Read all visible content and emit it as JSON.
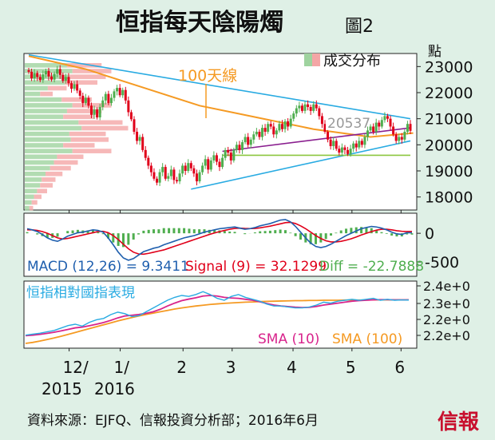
{
  "title": "恒指每天陰陽燭",
  "figure_label": "圖2",
  "unit_label": "點",
  "footer": "資料來源：EJFQ、信報投資分析部；2016年6月",
  "logo_text": "信報",
  "colors": {
    "background": "#dff0e6",
    "panel": "#ffffff",
    "up": "#4fae4f",
    "down": "#e0001a",
    "ma100": "#f59a23",
    "trend": "#29abe2",
    "purple": "#8a1f8f",
    "support": "#8cc63f",
    "macd": "#1f5fae",
    "signal": "#e0001a",
    "diff": "#4fae4f",
    "rel": "#29abe2",
    "sma10": "#d8248c",
    "sma100": "#f59a23",
    "vol_up": "#9fd39f",
    "vol_down": "#f4a6a6"
  },
  "chart_data": [
    {
      "type": "candlestick",
      "name": "price_panel",
      "ylim": [
        17500,
        23500
      ],
      "yticks": [
        23000,
        22000,
        21000,
        20000,
        19000,
        18000
      ],
      "ytick_labels": [
        "23000",
        "22000",
        "21000",
        "20000",
        "19000",
        "18000"
      ],
      "legend": "成交分布",
      "annotations": {
        "ma100_label": "100天線",
        "price_label": "20537"
      },
      "close": [
        22800,
        22550,
        22750,
        22600,
        22480,
        22700,
        22830,
        22620,
        22500,
        22720,
        22900,
        22680,
        22450,
        22600,
        22360,
        22150,
        22320,
        22080,
        21880,
        21600,
        21800,
        21500,
        21150,
        21350,
        21050,
        21450,
        21700,
        21950,
        21600,
        21800,
        22050,
        22180,
        21900,
        22100,
        21700,
        21250,
        20980,
        20500,
        20150,
        20300,
        19800,
        19500,
        19200,
        18950,
        18700,
        18550,
        18950,
        19150,
        18700,
        18800,
        19050,
        18650,
        18600,
        18900,
        19200,
        19000,
        19300,
        19100,
        18900,
        18600,
        18950,
        19200,
        19450,
        19050,
        19400,
        19600,
        19350,
        19150,
        19500,
        19800,
        19700,
        19400,
        19800,
        20000,
        19800,
        20100,
        20300,
        20000,
        20200,
        20400,
        20500,
        20300,
        20650,
        20500,
        20800,
        20700,
        20400,
        20550,
        20800,
        20600,
        20900,
        20700,
        21000,
        21200,
        21400,
        21500,
        21300,
        21550,
        21450,
        21300,
        21550,
        21400,
        21100,
        20800,
        20500,
        20200,
        19950,
        20150,
        19850,
        19700,
        19900,
        19800,
        19650,
        19850,
        20050,
        19900,
        20150,
        20000,
        20300,
        20550,
        20700,
        20500,
        20850,
        20700,
        20950,
        21100,
        21000,
        20700,
        20400,
        20150,
        20300,
        20200,
        20500,
        20800,
        20537
      ],
      "volume_profile": [
        0.55,
        0.62,
        0.58,
        0.52,
        0.3,
        0.2,
        0.48,
        0.62,
        0.55,
        0.5,
        0.7,
        0.74,
        0.58,
        0.6,
        0.5,
        0.62,
        0.42,
        0.38,
        0.33,
        0.27,
        0.22,
        0.2,
        0.16,
        0.12,
        0.09,
        0.06
      ],
      "ma100": [
        [
          0,
          23400
        ],
        [
          20,
          22900
        ],
        [
          40,
          22200
        ],
        [
          60,
          21500
        ],
        [
          80,
          21050
        ],
        [
          100,
          20600
        ],
        [
          120,
          20300
        ],
        [
          135,
          20450
        ]
      ],
      "trend_upper": [
        [
          0,
          23450
        ],
        [
          134,
          21000
        ]
      ],
      "trend_lower": [
        [
          57,
          18300
        ],
        [
          134,
          20150
        ]
      ],
      "purple_line": [
        [
          68,
          19750
        ],
        [
          134,
          20650
        ]
      ],
      "support_line": [
        [
          68,
          19600
        ],
        [
          134,
          19600
        ]
      ]
    },
    {
      "type": "line",
      "name": "macd_panel",
      "ylim": [
        -750,
        350
      ],
      "yticks": [
        0,
        -500
      ],
      "ytick_labels": [
        "0",
        "-500"
      ],
      "labels": {
        "macd": "MACD (12,26) = 9.3411",
        "signal": "Signal (9) = 32.1299",
        "diff": "Diff = -22.7888"
      },
      "macd": [
        80,
        60,
        30,
        -20,
        -80,
        -120,
        -140,
        -100,
        -50,
        -20,
        10,
        20,
        40,
        60,
        50,
        20,
        -80,
        -200,
        -330,
        -430,
        -470,
        -440,
        -380,
        -320,
        -290,
        -260,
        -240,
        -200,
        -170,
        -140,
        -110,
        -80,
        -60,
        -40,
        -10,
        20,
        40,
        60,
        80,
        90,
        100,
        110,
        90,
        70,
        80,
        100,
        130,
        150,
        170,
        200,
        230,
        240,
        200,
        120,
        20,
        -80,
        -170,
        -230,
        -250,
        -230,
        -190,
        -140,
        -90,
        -40,
        0,
        40,
        80,
        100,
        120,
        110,
        90,
        60,
        20,
        -10,
        -20,
        10,
        9
      ],
      "signal": [
        60,
        60,
        50,
        30,
        0,
        -40,
        -80,
        -100,
        -90,
        -70,
        -50,
        -30,
        -10,
        10,
        30,
        35,
        10,
        -40,
        -110,
        -190,
        -270,
        -330,
        -360,
        -365,
        -350,
        -330,
        -310,
        -290,
        -260,
        -230,
        -200,
        -170,
        -140,
        -110,
        -80,
        -50,
        -20,
        5,
        30,
        50,
        70,
        85,
        90,
        85,
        82,
        85,
        95,
        110,
        125,
        145,
        165,
        185,
        190,
        170,
        130,
        80,
        20,
        -40,
        -90,
        -130,
        -150,
        -150,
        -140,
        -120,
        -95,
        -65,
        -30,
        0,
        30,
        55,
        70,
        70,
        60,
        45,
        35,
        30,
        32
      ]
    },
    {
      "type": "line",
      "name": "relative_panel",
      "ytick_labels": [
        "2.4e+0",
        "2.3e+0",
        "2.2e+0",
        "2.2e+0"
      ],
      "labels": {
        "title": "恒指相對國指表現",
        "sma10": "SMA (10)",
        "sma100": "SMA (100)"
      },
      "ratio": [
        2.148,
        2.153,
        2.158,
        2.165,
        2.172,
        2.185,
        2.198,
        2.205,
        2.195,
        2.215,
        2.228,
        2.235,
        2.255,
        2.268,
        2.26,
        2.245,
        2.25,
        2.27,
        2.29,
        2.31,
        2.33,
        2.345,
        2.355,
        2.35,
        2.36,
        2.375,
        2.36,
        2.34,
        2.33,
        2.35,
        2.36,
        2.345,
        2.335,
        2.325,
        2.31,
        2.3,
        2.3,
        2.295,
        2.29,
        2.29,
        2.295,
        2.305,
        2.32,
        2.315,
        2.325,
        2.33,
        2.335,
        2.33,
        2.335,
        2.34,
        2.33,
        2.335,
        2.33,
        2.332,
        2.331
      ],
      "sma10": [
        2.145,
        2.148,
        2.152,
        2.157,
        2.163,
        2.17,
        2.178,
        2.186,
        2.19,
        2.197,
        2.205,
        2.214,
        2.225,
        2.238,
        2.248,
        2.252,
        2.256,
        2.262,
        2.27,
        2.283,
        2.3,
        2.315,
        2.328,
        2.336,
        2.343,
        2.352,
        2.355,
        2.352,
        2.345,
        2.342,
        2.34,
        2.335,
        2.33,
        2.322,
        2.313,
        2.305,
        2.3,
        2.297,
        2.294,
        2.292,
        2.293,
        2.298,
        2.305,
        2.31,
        2.315,
        2.32,
        2.325,
        2.328,
        2.33,
        2.332,
        2.333,
        2.333,
        2.332,
        2.332,
        2.332
      ],
      "sma100": [
        2.105,
        2.11,
        2.117,
        2.125,
        2.133,
        2.142,
        2.152,
        2.162,
        2.172,
        2.182,
        2.192,
        2.202,
        2.212,
        2.222,
        2.231,
        2.24,
        2.248,
        2.256,
        2.263,
        2.27,
        2.277,
        2.284,
        2.29,
        2.295,
        2.3,
        2.304,
        2.308,
        2.311,
        2.314,
        2.316,
        2.318,
        2.32,
        2.321,
        2.323,
        2.324,
        2.325,
        2.326,
        2.327,
        2.328,
        2.328,
        2.329,
        2.329,
        2.33,
        2.33,
        2.33,
        2.331,
        2.331,
        2.331,
        2.331,
        2.332,
        2.332,
        2.332,
        2.332,
        2.332,
        2.332
      ]
    }
  ],
  "x_axis": {
    "labels": [
      "12/",
      "1/",
      "2",
      "3",
      "4",
      "5",
      "6"
    ],
    "years": [
      "2015",
      "2016"
    ],
    "positions": [
      0.115,
      0.245,
      0.405,
      0.53,
      0.685,
      0.835,
      0.96
    ]
  }
}
